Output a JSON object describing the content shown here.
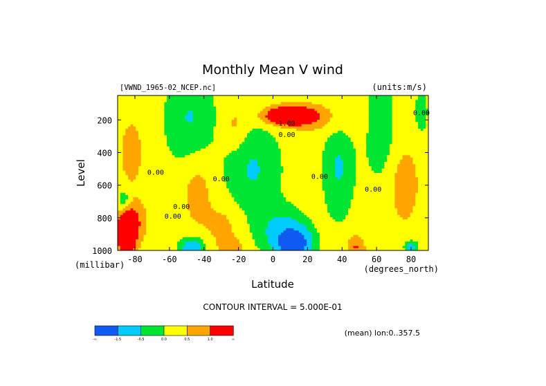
{
  "chart_data": {
    "type": "heatmap",
    "title": "Monthly Mean V wind",
    "dataset_label": "[VWND_1965-02_NCEP.nc]",
    "units_label": "(units:m/s)",
    "xlabel": "Latitude",
    "x_units": "(degrees_north)",
    "ylabel": "Level",
    "y_units": "(millibar)",
    "xlim": [
      -90,
      90
    ],
    "ylim": [
      1000,
      50
    ],
    "y_reversed": true,
    "x_ticks": [
      -80,
      -60,
      -40,
      -20,
      0,
      20,
      40,
      60,
      80
    ],
    "x_tick_labels": [
      "-80",
      "-60",
      "-40",
      "-20",
      "0",
      "20",
      "40",
      "60",
      "80"
    ],
    "y_ticks": [
      200,
      400,
      600,
      800,
      1000
    ],
    "y_tick_labels": [
      "200",
      "400",
      "600",
      "800",
      "1000"
    ],
    "contour_interval_label": "CONTOUR INTERVAL = 5.000E-01",
    "mean_label": "(mean) lon:0..357.5",
    "contour_labels": [
      {
        "text": "1.00",
        "lat": 8,
        "level": 235
      },
      {
        "text": "0.00",
        "lat": 8,
        "level": 305
      },
      {
        "text": "0.00",
        "lat": -68,
        "level": 535
      },
      {
        "text": "0.00",
        "lat": -30,
        "level": 575
      },
      {
        "text": "0.00",
        "lat": 27,
        "level": 560
      },
      {
        "text": "0.00",
        "lat": 58,
        "level": 640
      },
      {
        "text": "0.00",
        "lat": -58,
        "level": 805
      },
      {
        "text": "0.00",
        "lat": -53,
        "level": 745
      },
      {
        "text": "0.00",
        "lat": 86,
        "level": 170
      }
    ],
    "bands": [
      {
        "color": "#0f5af0",
        "label": "-∞"
      },
      {
        "color": "#00ccff",
        "label": "-1.5"
      },
      {
        "color": "#00e632",
        "label": "-0.5"
      },
      {
        "color": "#ffff00",
        "label": "0.0"
      },
      {
        "color": "#ffa500",
        "label": "0.5"
      },
      {
        "color": "#ff0000",
        "label": "1.0"
      },
      {
        "color": "",
        "label": "∞"
      }
    ],
    "fields": {
      "background": 0.25,
      "blobs": [
        {
          "lat": 10,
          "level": 175,
          "slat": 14,
          "slev": 55,
          "amp": 2.4
        },
        {
          "lat": 35,
          "level": 200,
          "slat": 18,
          "slev": 120,
          "amp": 0.4
        },
        {
          "lat": 12,
          "level": 960,
          "slat": 9,
          "slev": 90,
          "amp": -2.8
        },
        {
          "lat": 5,
          "level": 880,
          "slat": 14,
          "slev": 140,
          "amp": -0.9
        },
        {
          "lat": -47,
          "level": 980,
          "slat": 7,
          "slev": 60,
          "amp": -1.3
        },
        {
          "lat": -24,
          "level": 980,
          "slat": 6,
          "slev": 50,
          "amp": 0.6
        },
        {
          "lat": -85,
          "level": 900,
          "slat": 5,
          "slev": 160,
          "amp": 1.9
        },
        {
          "lat": -80,
          "level": 830,
          "slat": 7,
          "slev": 120,
          "amp": 0.7
        },
        {
          "lat": 48,
          "level": 980,
          "slat": 5,
          "slev": 70,
          "amp": 0.8
        },
        {
          "lat": 80,
          "level": 980,
          "slat": 4,
          "slev": 40,
          "amp": -1.0
        },
        {
          "lat": -48,
          "level": 200,
          "slat": 14,
          "slev": 300,
          "amp": -0.8
        },
        {
          "lat": -44,
          "level": 600,
          "slat": 10,
          "slev": 260,
          "amp": 0.5
        },
        {
          "lat": -12,
          "level": 500,
          "slat": 16,
          "slev": 280,
          "amp": -0.8
        },
        {
          "lat": -22,
          "level": 250,
          "slat": 8,
          "slev": 150,
          "amp": 0.5
        },
        {
          "lat": 38,
          "level": 480,
          "slat": 9,
          "slev": 320,
          "amp": -0.8
        },
        {
          "lat": 62,
          "level": 250,
          "slat": 9,
          "slev": 320,
          "amp": -0.6
        },
        {
          "lat": 76,
          "level": 600,
          "slat": 9,
          "slev": 250,
          "amp": 0.5
        },
        {
          "lat": 86,
          "level": 150,
          "slat": 4,
          "slev": 150,
          "amp": -0.5
        },
        {
          "lat": -82,
          "level": 400,
          "slat": 8,
          "slev": 250,
          "amp": 0.4
        },
        {
          "lat": -86,
          "level": 700,
          "slat": 4,
          "slev": 80,
          "amp": -0.9
        },
        {
          "lat": -28,
          "level": 850,
          "slat": 10,
          "slev": 150,
          "amp": 0.4
        }
      ]
    }
  }
}
